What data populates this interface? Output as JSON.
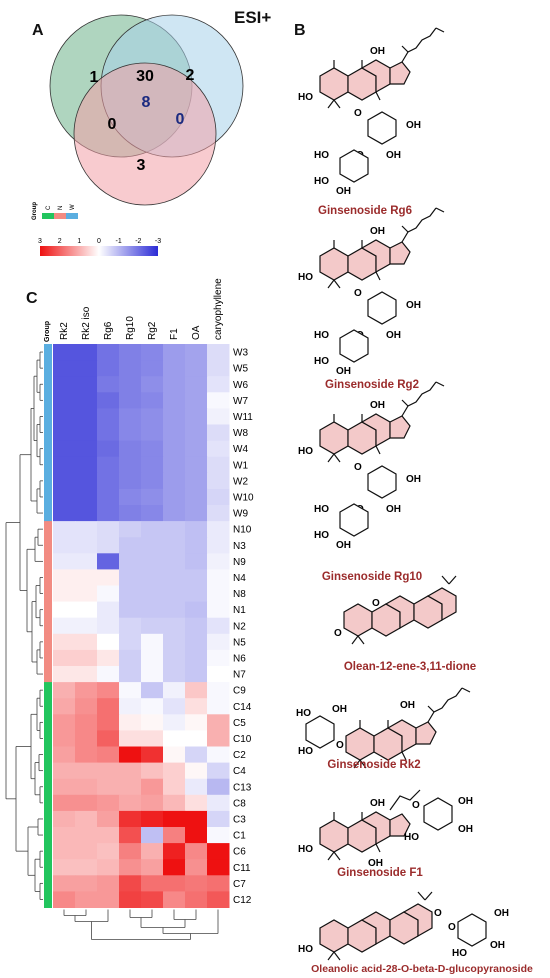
{
  "panel_a": {
    "letter": "A",
    "mode_label": "ESI+",
    "regions": {
      "only_green": "1",
      "only_blue": "2",
      "only_red": "3",
      "green_blue": "30",
      "green_red": "0",
      "blue_red": "0",
      "all_three": "8"
    },
    "colors": {
      "green": "#6db38a",
      "blue": "#a8d1ea",
      "red": "#f2a0a8",
      "center_text": "#1b2a80"
    }
  },
  "group_legend": {
    "title": "Group",
    "items": [
      {
        "label": "C",
        "color": "#22c55e"
      },
      {
        "label": "N",
        "color": "#f28b82"
      },
      {
        "label": "W",
        "color": "#5aaee0"
      }
    ]
  },
  "color_scale": {
    "ticks": [
      "3",
      "2",
      "1",
      "0",
      "-1",
      "-2",
      "-3"
    ],
    "low_color": "#2b2bd6",
    "mid_color": "#ffffff",
    "high_color": "#ee1111"
  },
  "panel_c": {
    "letter": "C",
    "group_header": "Group",
    "columns": [
      "Rk2",
      "Rk2 iso",
      "Rg6",
      "Rg10",
      "Rg2",
      "F1",
      "OA",
      "caryophyllene"
    ],
    "rows": [
      {
        "label": "W3",
        "group": "W"
      },
      {
        "label": "W5",
        "group": "W"
      },
      {
        "label": "W6",
        "group": "W"
      },
      {
        "label": "W7",
        "group": "W"
      },
      {
        "label": "W11",
        "group": "W"
      },
      {
        "label": "W8",
        "group": "W"
      },
      {
        "label": "W4",
        "group": "W"
      },
      {
        "label": "W1",
        "group": "W"
      },
      {
        "label": "W2",
        "group": "W"
      },
      {
        "label": "W10",
        "group": "W"
      },
      {
        "label": "W9",
        "group": "W"
      },
      {
        "label": "N10",
        "group": "N"
      },
      {
        "label": "N3",
        "group": "N"
      },
      {
        "label": "N9",
        "group": "N"
      },
      {
        "label": "N4",
        "group": "N"
      },
      {
        "label": "N8",
        "group": "N"
      },
      {
        "label": "N1",
        "group": "N"
      },
      {
        "label": "N2",
        "group": "N"
      },
      {
        "label": "N5",
        "group": "N"
      },
      {
        "label": "N6",
        "group": "N"
      },
      {
        "label": "N7",
        "group": "N"
      },
      {
        "label": "C9",
        "group": "C"
      },
      {
        "label": "C14",
        "group": "C"
      },
      {
        "label": "C5",
        "group": "C"
      },
      {
        "label": "C10",
        "group": "C"
      },
      {
        "label": "C2",
        "group": "C"
      },
      {
        "label": "C4",
        "group": "C"
      },
      {
        "label": "C13",
        "group": "C"
      },
      {
        "label": "C8",
        "group": "C"
      },
      {
        "label": "C3",
        "group": "C"
      },
      {
        "label": "C1",
        "group": "C"
      },
      {
        "label": "C6",
        "group": "C"
      },
      {
        "label": "C11",
        "group": "C"
      },
      {
        "label": "C7",
        "group": "C"
      },
      {
        "label": "C12",
        "group": "C"
      }
    ],
    "values": [
      [
        -2.4,
        -2.4,
        -2.0,
        -1.8,
        -1.7,
        -1.4,
        -1.3,
        -0.5
      ],
      [
        -2.4,
        -2.4,
        -2.0,
        -1.8,
        -1.7,
        -1.4,
        -1.3,
        -0.5
      ],
      [
        -2.4,
        -2.4,
        -1.9,
        -1.8,
        -1.6,
        -1.4,
        -1.3,
        -0.4
      ],
      [
        -2.4,
        -2.4,
        -2.1,
        -1.8,
        -1.7,
        -1.4,
        -1.3,
        -0.1
      ],
      [
        -2.4,
        -2.4,
        -2.0,
        -1.7,
        -1.6,
        -1.4,
        -1.3,
        -0.2
      ],
      [
        -2.4,
        -2.4,
        -2.0,
        -1.7,
        -1.6,
        -1.4,
        -1.3,
        -0.5
      ],
      [
        -2.4,
        -2.4,
        -2.1,
        -1.8,
        -1.7,
        -1.4,
        -1.3,
        -0.4
      ],
      [
        -2.4,
        -2.4,
        -2.0,
        -1.8,
        -1.7,
        -1.4,
        -1.3,
        -0.5
      ],
      [
        -2.4,
        -2.4,
        -2.0,
        -1.8,
        -1.7,
        -1.4,
        -1.3,
        -0.5
      ],
      [
        -2.4,
        -2.4,
        -2.0,
        -1.7,
        -1.6,
        -1.4,
        -1.3,
        -0.6
      ],
      [
        -2.4,
        -2.4,
        -2.0,
        -1.8,
        -1.7,
        -1.4,
        -1.3,
        -0.5
      ],
      [
        -0.4,
        -0.4,
        -0.5,
        -0.7,
        -0.8,
        -0.8,
        -0.9,
        -0.3
      ],
      [
        -0.4,
        -0.4,
        -0.5,
        -0.8,
        -0.8,
        -0.8,
        -0.9,
        -0.3
      ],
      [
        -0.3,
        -0.3,
        -2.2,
        -0.8,
        -0.8,
        -0.8,
        -0.9,
        -0.2
      ],
      [
        0.2,
        0.2,
        0.2,
        -0.8,
        -0.8,
        -0.8,
        -0.8,
        -0.1
      ],
      [
        0.2,
        0.2,
        -0.1,
        -0.8,
        -0.8,
        -0.8,
        -0.8,
        -0.1
      ],
      [
        0.0,
        0.0,
        -0.3,
        -0.8,
        -0.8,
        -0.8,
        -0.9,
        -0.1
      ],
      [
        -0.2,
        -0.2,
        -0.3,
        -0.6,
        -0.7,
        -0.7,
        -0.8,
        -0.4
      ],
      [
        0.4,
        0.4,
        0.0,
        -0.6,
        -0.1,
        -0.7,
        -0.8,
        -0.2
      ],
      [
        0.6,
        0.6,
        0.3,
        -0.7,
        -0.1,
        -0.7,
        -0.8,
        -0.1
      ],
      [
        0.3,
        0.3,
        -0.1,
        -0.7,
        -0.1,
        -0.7,
        -0.8,
        0.0
      ],
      [
        1.0,
        1.3,
        1.5,
        -0.1,
        -0.8,
        -0.2,
        0.7,
        -0.1
      ],
      [
        1.1,
        1.4,
        1.8,
        -0.2,
        -0.1,
        -0.4,
        0.4,
        -0.1
      ],
      [
        1.3,
        1.5,
        1.8,
        0.2,
        0.1,
        -0.2,
        0.1,
        1.0
      ],
      [
        1.3,
        1.5,
        2.0,
        0.4,
        0.4,
        0.0,
        0.0,
        1.0
      ],
      [
        1.2,
        1.5,
        1.6,
        3.0,
        2.6,
        0.1,
        -0.6,
        -0.1
      ],
      [
        1.0,
        1.0,
        1.0,
        1.0,
        0.8,
        0.6,
        0.1,
        -0.6
      ],
      [
        1.1,
        1.1,
        1.0,
        1.0,
        1.3,
        0.6,
        -0.3,
        -1.0
      ],
      [
        1.4,
        1.4,
        1.3,
        1.1,
        1.2,
        0.9,
        0.4,
        -0.3
      ],
      [
        1.0,
        0.9,
        1.2,
        2.6,
        2.8,
        3.0,
        3.0,
        -0.6
      ],
      [
        0.9,
        0.9,
        0.9,
        2.2,
        -0.9,
        1.6,
        3.0,
        -0.1
      ],
      [
        0.9,
        0.9,
        0.8,
        1.6,
        1.0,
        2.8,
        1.5,
        3.0
      ],
      [
        0.8,
        0.8,
        0.9,
        1.4,
        1.2,
        3.0,
        1.4,
        3.0
      ],
      [
        1.2,
        1.2,
        1.3,
        2.3,
        1.8,
        1.8,
        1.7,
        1.8
      ],
      [
        1.5,
        1.3,
        1.3,
        2.4,
        2.3,
        1.5,
        1.8,
        2.1
      ]
    ]
  },
  "panel_b": {
    "letter": "B",
    "compounds": [
      "Ginsenoside Rg6",
      "Ginsenoside Rg2",
      "Ginsenoside Rg10",
      "Olean-12-ene-3,11-dione",
      "Ginsenoside Rk2",
      "Ginsenoside F1",
      "Oleanolic acid-28-O-beta-D-glucopyranoside"
    ],
    "atom_labels": {
      "hydroxyl": "OH",
      "hydroxyl_left": "HO",
      "oxygen": "O"
    },
    "ring_fill": "#f3c9c9"
  }
}
